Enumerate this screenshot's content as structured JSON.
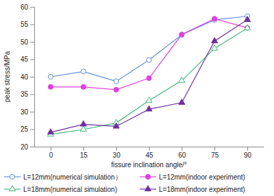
{
  "chart_data": {
    "type": "line",
    "x_label": "fissure inclination angle/°",
    "y_label": "peak stress/MPa",
    "categories": [
      0,
      15,
      30,
      45,
      60,
      75,
      90
    ],
    "ylim": [
      20,
      60
    ],
    "yticks": [
      20,
      25,
      30,
      35,
      40,
      45,
      50,
      55,
      60
    ],
    "grid": false,
    "legend": "bottom",
    "series": [
      {
        "name": "L=12mm(numerical simulation）",
        "color": "#5b8fd6",
        "marker": "circle-open",
        "values": [
          40,
          41.5,
          38.7,
          44.8,
          52,
          56.3,
          57.3
        ]
      },
      {
        "name": "L=12mm(indoor experiment)",
        "color": "#e040e0",
        "marker": "circle",
        "values": [
          37.1,
          37.1,
          36.3,
          39.6,
          52.1,
          56.6,
          54
        ]
      },
      {
        "name": "L=18mm(numerical simulation)",
        "color": "#3cb878",
        "marker": "triangle-open",
        "values": [
          23.5,
          24.9,
          26.8,
          33.2,
          38.9,
          48.1,
          53.9
        ]
      },
      {
        "name": "L=18mm(indoor experiment)",
        "color": "#7030a0",
        "marker": "triangle",
        "values": [
          24.1,
          26.4,
          25.8,
          30.7,
          32.6,
          50.2,
          56.3
        ]
      }
    ]
  }
}
